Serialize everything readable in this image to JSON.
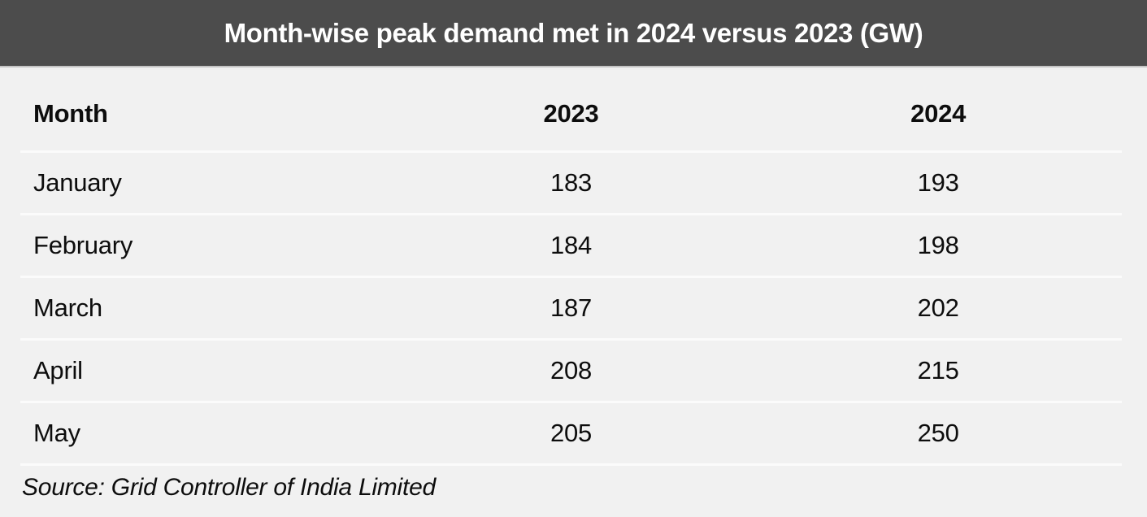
{
  "title": "Month-wise peak demand met in 2024 versus 2023 (GW)",
  "table": {
    "columns": [
      "Month",
      "2023",
      "2024"
    ],
    "rows": [
      {
        "month": "January",
        "v2023": "183",
        "v2024": "193"
      },
      {
        "month": "February",
        "v2023": "184",
        "v2024": "198"
      },
      {
        "month": "March",
        "v2023": "187",
        "v2024": "202"
      },
      {
        "month": "April",
        "v2023": "208",
        "v2024": "215"
      },
      {
        "month": "May",
        "v2023": "205",
        "v2024": "250"
      }
    ]
  },
  "source": "Source: Grid Controller of India Limited",
  "colors": {
    "title_bar_bg": "#4c4c4c",
    "title_text": "#ffffff",
    "body_bg": "#f1f1f1",
    "separator": "#fbfbfb",
    "text": "#0d0d0d"
  },
  "chart_data": {
    "type": "table",
    "title": "Month-wise peak demand met in 2024 versus 2023 (GW)",
    "categories": [
      "January",
      "February",
      "March",
      "April",
      "May"
    ],
    "series": [
      {
        "name": "2023",
        "values": [
          183,
          184,
          187,
          208,
          205
        ]
      },
      {
        "name": "2024",
        "values": [
          193,
          198,
          202,
          215,
          250
        ]
      }
    ],
    "unit": "GW",
    "source": "Source: Grid Controller of India Limited",
    "legend_position": "none",
    "grid": false
  }
}
